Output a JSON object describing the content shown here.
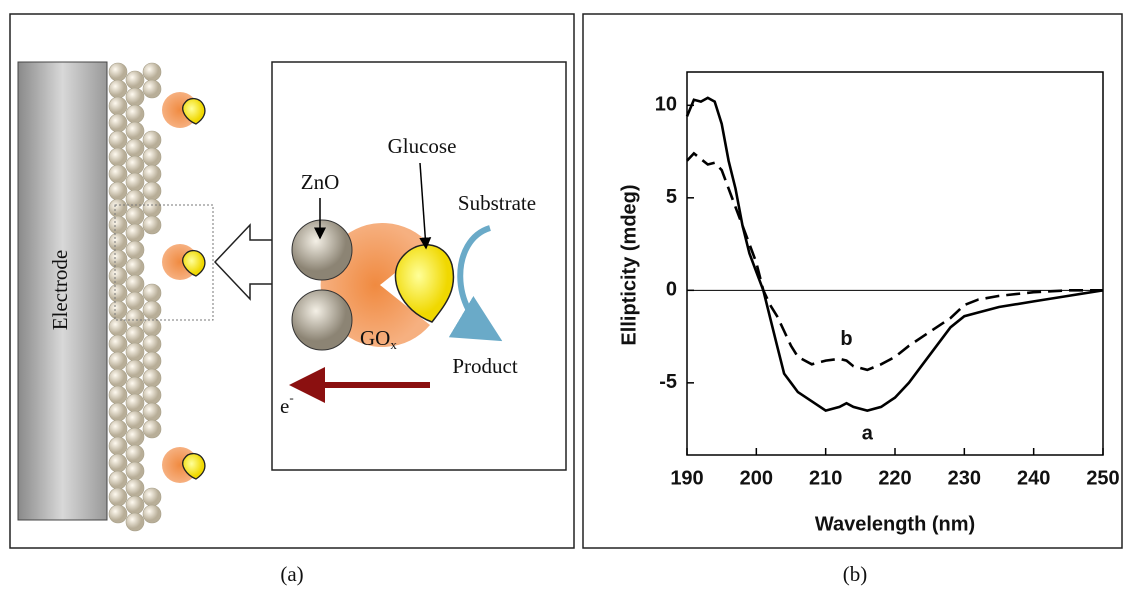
{
  "diagram": {
    "electrode": "Electrode",
    "zno": "ZnO",
    "glucose": "Glucose",
    "substrate": "Substrate",
    "product": "Product",
    "gox": {
      "main": "GO",
      "sub": "x"
    },
    "electron": {
      "main": "e",
      "sup": "-"
    }
  },
  "captions": [
    "(a)",
    "(b)"
  ],
  "chart_data": {
    "type": "line",
    "xlabel": "Wavelength (nm)",
    "ylabel": "Ellipticity (mdeg)",
    "x": [
      190,
      191,
      192,
      193,
      194,
      195,
      196,
      197,
      198,
      199,
      200,
      201,
      202,
      203,
      204,
      205,
      206,
      208,
      210,
      212,
      213,
      214,
      216,
      218,
      220,
      222,
      224,
      226,
      228,
      230,
      232,
      235,
      240,
      245,
      250
    ],
    "series": [
      {
        "name": "a",
        "color": "#000000",
        "style": "solid",
        "values": [
          9.4,
          10.3,
          10.2,
          10.4,
          10.2,
          9.0,
          7.0,
          5.5,
          3.5,
          2.0,
          1.0,
          0,
          -1.5,
          -3.0,
          -4.5,
          -5.0,
          -5.5,
          -6.0,
          -6.5,
          -6.3,
          -6.1,
          -6.3,
          -6.5,
          -6.3,
          -5.8,
          -5.0,
          -4.0,
          -3.0,
          -2.0,
          -1.4,
          -1.2,
          -0.9,
          -0.6,
          -0.3,
          0
        ]
      },
      {
        "name": "b",
        "color": "#000000",
        "style": "dashed",
        "values": [
          7.0,
          7.4,
          7.1,
          6.8,
          6.9,
          6.5,
          5.5,
          4.5,
          3.5,
          2.5,
          1.5,
          0,
          -0.8,
          -1.4,
          -2.2,
          -3.0,
          -3.6,
          -4.0,
          -3.8,
          -3.7,
          -3.8,
          -4.1,
          -4.3,
          -4.0,
          -3.6,
          -3.0,
          -2.5,
          -2.0,
          -1.5,
          -0.8,
          -0.5,
          -0.3,
          -0.1,
          0,
          0
        ]
      }
    ],
    "xlim": [
      190,
      250
    ],
    "ylim": [
      -8.9,
      11.8
    ],
    "xticks": [
      190,
      200,
      210,
      220,
      230,
      240,
      250
    ],
    "yticks": [
      -5,
      0,
      5,
      10
    ],
    "zero_line": true
  }
}
